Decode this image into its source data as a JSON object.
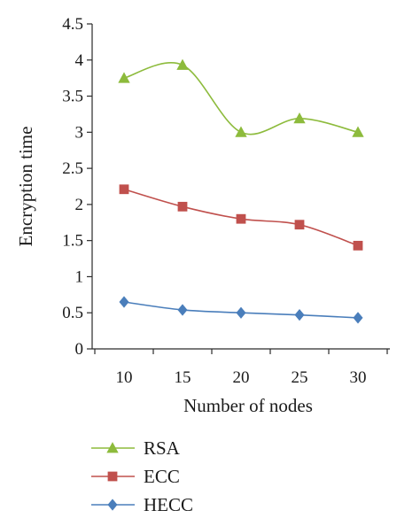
{
  "chart_data": {
    "type": "line",
    "xlabel": "Number of nodes",
    "ylabel": "Encryption time",
    "x": [
      10,
      15,
      20,
      25,
      30
    ],
    "x_tick_labels": [
      "10",
      "15",
      "20",
      "25",
      "30"
    ],
    "ylim": [
      0,
      4.5
    ],
    "y_tick_labels": [
      "0",
      "0.5",
      "1",
      "1.5",
      "2",
      "2.5",
      "3",
      "3.5",
      "4",
      "4.5"
    ],
    "y_ticks": [
      0,
      0.5,
      1,
      1.5,
      2,
      2.5,
      3,
      3.5,
      4,
      4.5
    ],
    "grid": false,
    "legend_position": "bottom-left",
    "smooth": true,
    "series": [
      {
        "name": "RSA",
        "values": [
          3.75,
          3.93,
          3.0,
          3.19,
          3.0
        ],
        "color": "#8dbb3c",
        "marker": "triangle"
      },
      {
        "name": "ECC",
        "values": [
          2.21,
          1.97,
          1.8,
          1.72,
          1.43
        ],
        "color": "#c0504d",
        "marker": "square"
      },
      {
        "name": "HECC",
        "values": [
          0.65,
          0.54,
          0.5,
          0.47,
          0.43
        ],
        "color": "#4a7ebb",
        "marker": "diamond"
      }
    ]
  }
}
